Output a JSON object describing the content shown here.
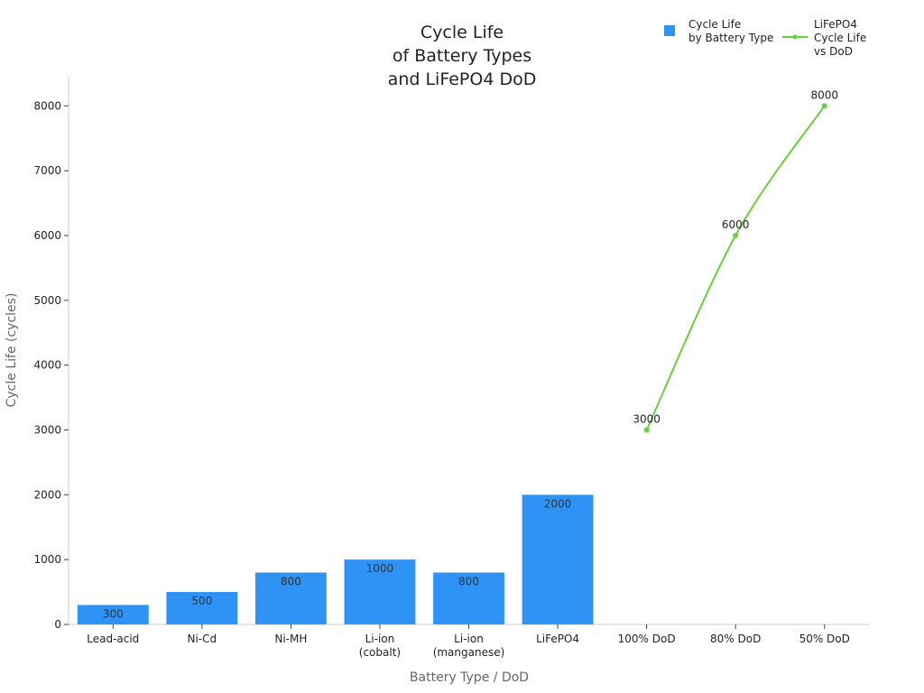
{
  "chart_data": {
    "type": "bar",
    "title": "Cycle Life\nof Battery Types\nand LiFePO4 DoD",
    "x_label": "Battery Type / DoD",
    "y_label": "Cycle Life (cycles)",
    "categories": [
      "Lead-acid",
      "Ni-Cd",
      "Ni-MH",
      "Li-ion\n(cobalt)",
      "Li-ion\n(manganese)",
      "LiFePO4",
      "100% DoD",
      "80% DoD",
      "50% DoD"
    ],
    "series": [
      {
        "name": "Cycle Life\nby Battery Type",
        "type": "bar",
        "color": "#2e93f5",
        "values": [
          300,
          500,
          800,
          1000,
          800,
          2000,
          null,
          null,
          null
        ]
      },
      {
        "name": "LiFePO4\nCycle Life\nvs DoD",
        "type": "line",
        "color": "#66d13a",
        "values": [
          null,
          null,
          null,
          null,
          null,
          null,
          3000,
          6000,
          8000
        ]
      }
    ],
    "ylim": [
      0,
      8450
    ],
    "yticks": [
      0,
      1000,
      2000,
      3000,
      4000,
      5000,
      6000,
      7000,
      8000
    ],
    "grid": false,
    "legend": "top-right"
  }
}
